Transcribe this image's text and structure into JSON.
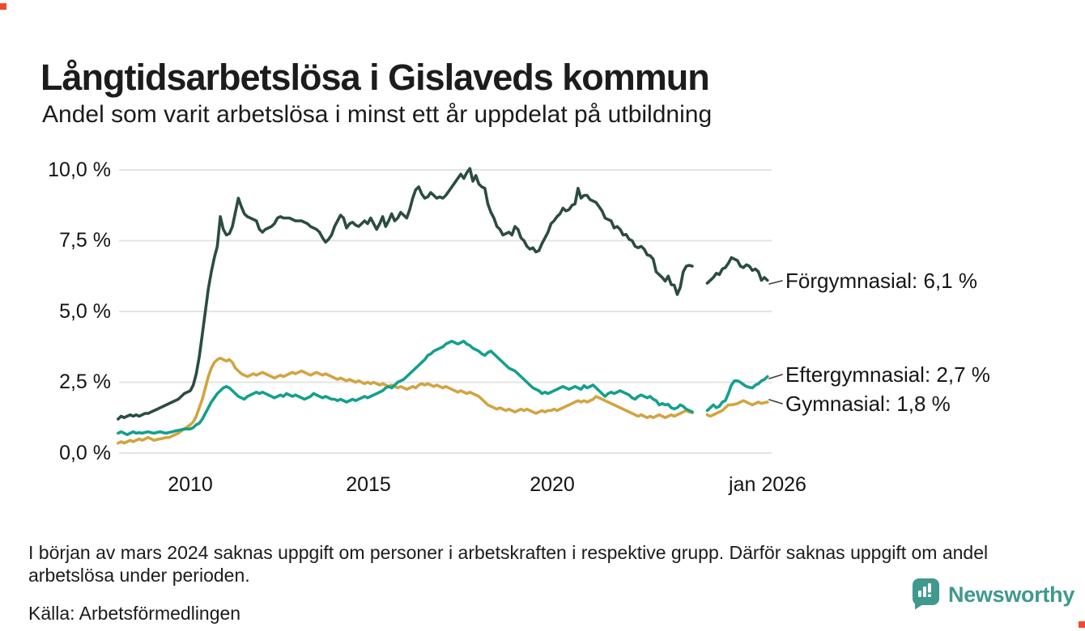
{
  "header": {
    "title": "Långtidsarbetslösa i Gislaveds kommun",
    "subtitle": "Andel som varit arbetslösa i minst ett år uppdelat på utbildning"
  },
  "chart_data": {
    "type": "line",
    "title": "Långtidsarbetslösa i Gislaveds kommun",
    "subtitle": "Andel som varit arbetslösa i minst ett år uppdelat på utbildning",
    "unit": "%",
    "grid": "horizontal only",
    "legend_position": "end-of-line labels at right",
    "x_axis": {
      "start": "2008-01",
      "end": "2026-01",
      "freq": "monthly",
      "ticks": [
        {
          "label": "2010",
          "year": 2010
        },
        {
          "label": "2015",
          "year": 2015
        },
        {
          "label": "2020",
          "year": 2020
        },
        {
          "label": "jan 2026",
          "year": 2026
        }
      ]
    },
    "y_axis": {
      "min": 0,
      "max": 10,
      "ticks": [
        {
          "label": "10,0 %",
          "value": 10
        },
        {
          "label": "7,5 %",
          "value": 7.5
        },
        {
          "label": "5,0 %",
          "value": 5
        },
        {
          "label": "2,5 %",
          "value": 2.5
        },
        {
          "label": "0,0 %",
          "value": 0
        }
      ]
    },
    "data_gap": {
      "months": [
        "2024-01",
        "2024-02",
        "2024-03",
        "2024-04"
      ],
      "reason": "uppgift saknas (se fotnot)"
    },
    "series": [
      {
        "name": "Förgymnasial",
        "color": "#2B4C42",
        "end_label": "Förgymnasial: 6,1 %",
        "latest_value": 6.1,
        "values": [
          1.2,
          1.3,
          1.25,
          1.3,
          1.35,
          1.3,
          1.35,
          1.3,
          1.35,
          1.4,
          1.4,
          1.45,
          1.5,
          1.55,
          1.6,
          1.65,
          1.7,
          1.75,
          1.8,
          1.85,
          1.9,
          2.0,
          2.1,
          2.15,
          2.2,
          2.4,
          2.8,
          3.4,
          4.2,
          5.0,
          5.8,
          6.4,
          6.9,
          7.3,
          8.35,
          7.9,
          7.7,
          7.75,
          8.0,
          8.5,
          9.0,
          8.7,
          8.45,
          8.35,
          8.3,
          8.25,
          8.2,
          7.9,
          7.8,
          7.9,
          7.95,
          8.0,
          8.1,
          8.3,
          8.35,
          8.3,
          8.3,
          8.3,
          8.25,
          8.2,
          8.2,
          8.2,
          8.15,
          8.1,
          8.0,
          7.95,
          7.9,
          7.8,
          7.6,
          7.45,
          7.55,
          7.7,
          8.0,
          8.2,
          8.4,
          8.3,
          7.95,
          8.1,
          8.15,
          8.05,
          8.0,
          8.1,
          8.2,
          8.1,
          8.3,
          8.1,
          7.9,
          8.1,
          8.35,
          8.0,
          8.2,
          8.45,
          8.2,
          8.3,
          8.5,
          8.4,
          8.3,
          8.6,
          9.0,
          9.3,
          9.4,
          9.15,
          9.0,
          9.05,
          9.2,
          9.1,
          9.0,
          9.05,
          9.0,
          9.1,
          9.25,
          9.4,
          9.55,
          9.7,
          9.85,
          9.7,
          9.9,
          10.05,
          9.6,
          9.8,
          9.5,
          9.4,
          9.35,
          8.8,
          8.5,
          8.3,
          8.0,
          7.9,
          7.7,
          7.75,
          7.8,
          7.7,
          8.0,
          7.9,
          7.6,
          7.5,
          7.3,
          7.2,
          7.25,
          7.1,
          7.15,
          7.4,
          7.6,
          7.8,
          8.1,
          8.2,
          8.35,
          8.45,
          8.65,
          8.55,
          8.6,
          8.75,
          8.8,
          9.35,
          9.0,
          9.1,
          9.1,
          8.95,
          8.9,
          8.85,
          8.7,
          8.55,
          8.3,
          8.25,
          8.2,
          7.95,
          8.0,
          7.9,
          7.7,
          7.72,
          7.55,
          7.5,
          7.3,
          7.25,
          7.3,
          7.2,
          7.0,
          6.97,
          6.85,
          6.4,
          6.3,
          6.2,
          6.07,
          6.25,
          5.95,
          5.93,
          5.6,
          5.85,
          6.4,
          6.6,
          6.63,
          6.6,
          null,
          null,
          null,
          null,
          6.0,
          6.1,
          6.2,
          6.35,
          6.3,
          6.5,
          6.55,
          6.7,
          6.9,
          6.85,
          6.8,
          6.6,
          6.55,
          6.65,
          6.6,
          6.45,
          6.5,
          6.4,
          6.1,
          6.2,
          6.1
        ]
      },
      {
        "name": "Eftergymnasial",
        "color": "#13A08C",
        "end_label": "Eftergymnasial: 2,7 %",
        "latest_value": 2.7,
        "values": [
          0.7,
          0.75,
          0.7,
          0.65,
          0.7,
          0.75,
          0.7,
          0.72,
          0.7,
          0.73,
          0.75,
          0.72,
          0.7,
          0.73,
          0.75,
          0.72,
          0.7,
          0.73,
          0.75,
          0.78,
          0.8,
          0.82,
          0.85,
          0.85,
          0.85,
          0.9,
          1.0,
          1.05,
          1.2,
          1.4,
          1.6,
          1.8,
          1.95,
          2.1,
          2.2,
          2.3,
          2.35,
          2.3,
          2.2,
          2.1,
          2.0,
          1.95,
          1.9,
          2.0,
          2.05,
          2.1,
          2.15,
          2.1,
          2.15,
          2.1,
          2.05,
          2.0,
          1.95,
          2.0,
          2.05,
          2.0,
          2.1,
          2.05,
          2.0,
          2.05,
          2.0,
          1.95,
          1.9,
          1.95,
          2.0,
          2.1,
          2.05,
          2.0,
          1.95,
          2.0,
          1.95,
          1.9,
          1.9,
          1.85,
          1.9,
          1.85,
          1.8,
          1.85,
          1.9,
          1.85,
          1.9,
          1.95,
          2.0,
          1.95,
          2.0,
          2.05,
          2.1,
          2.15,
          2.2,
          2.3,
          2.35,
          2.3,
          2.4,
          2.5,
          2.55,
          2.6,
          2.7,
          2.8,
          2.9,
          3.0,
          3.1,
          3.2,
          3.3,
          3.45,
          3.5,
          3.6,
          3.65,
          3.7,
          3.75,
          3.85,
          3.9,
          3.95,
          3.9,
          3.85,
          3.9,
          3.95,
          3.85,
          3.8,
          3.7,
          3.65,
          3.6,
          3.5,
          3.45,
          3.55,
          3.6,
          3.5,
          3.4,
          3.3,
          3.2,
          3.1,
          3.0,
          2.95,
          2.9,
          2.8,
          2.7,
          2.6,
          2.5,
          2.4,
          2.3,
          2.25,
          2.2,
          2.1,
          2.15,
          2.1,
          2.15,
          2.2,
          2.25,
          2.3,
          2.35,
          2.3,
          2.25,
          2.3,
          2.35,
          2.3,
          2.25,
          2.38,
          2.3,
          2.35,
          2.4,
          2.3,
          2.2,
          2.1,
          2.0,
          2.1,
          2.15,
          2.1,
          2.15,
          2.2,
          2.15,
          2.1,
          2.05,
          1.95,
          1.9,
          2.0,
          2.05,
          2.0,
          1.95,
          2.0,
          1.9,
          1.85,
          1.7,
          1.75,
          1.7,
          1.72,
          1.6,
          1.56,
          1.6,
          1.7,
          1.65,
          1.55,
          1.5,
          1.45,
          null,
          null,
          null,
          null,
          1.5,
          1.6,
          1.7,
          1.6,
          1.65,
          1.8,
          1.85,
          2.1,
          2.4,
          2.55,
          2.55,
          2.5,
          2.42,
          2.35,
          2.32,
          2.3,
          2.4,
          2.45,
          2.55,
          2.6,
          2.7
        ]
      },
      {
        "name": "Gymnasial",
        "color": "#D2A440",
        "end_label": "Gymnasial: 1,8 %",
        "latest_value": 1.8,
        "values": [
          0.35,
          0.4,
          0.35,
          0.4,
          0.45,
          0.4,
          0.45,
          0.5,
          0.45,
          0.5,
          0.55,
          0.5,
          0.45,
          0.48,
          0.5,
          0.52,
          0.55,
          0.55,
          0.6,
          0.65,
          0.7,
          0.78,
          0.85,
          0.92,
          1.0,
          1.1,
          1.3,
          1.6,
          1.9,
          2.3,
          2.7,
          3.0,
          3.2,
          3.3,
          3.35,
          3.3,
          3.25,
          3.3,
          3.2,
          3.0,
          2.9,
          2.8,
          2.75,
          2.7,
          2.75,
          2.8,
          2.75,
          2.8,
          2.85,
          2.8,
          2.75,
          2.7,
          2.65,
          2.7,
          2.75,
          2.7,
          2.75,
          2.8,
          2.85,
          2.8,
          2.85,
          2.9,
          2.85,
          2.8,
          2.75,
          2.8,
          2.85,
          2.8,
          2.75,
          2.8,
          2.75,
          2.7,
          2.65,
          2.6,
          2.65,
          2.6,
          2.55,
          2.6,
          2.55,
          2.5,
          2.55,
          2.5,
          2.45,
          2.5,
          2.45,
          2.5,
          2.45,
          2.4,
          2.45,
          2.4,
          2.35,
          2.4,
          2.35,
          2.3,
          2.35,
          2.3,
          2.25,
          2.3,
          2.35,
          2.3,
          2.4,
          2.45,
          2.4,
          2.45,
          2.4,
          2.35,
          2.4,
          2.35,
          2.3,
          2.35,
          2.3,
          2.25,
          2.2,
          2.15,
          2.2,
          2.15,
          2.1,
          2.15,
          2.1,
          2.05,
          2.0,
          1.9,
          1.8,
          1.7,
          1.65,
          1.6,
          1.55,
          1.6,
          1.55,
          1.5,
          1.55,
          1.5,
          1.45,
          1.5,
          1.55,
          1.5,
          1.55,
          1.5,
          1.45,
          1.4,
          1.45,
          1.5,
          1.45,
          1.5,
          1.5,
          1.55,
          1.5,
          1.55,
          1.6,
          1.65,
          1.7,
          1.75,
          1.8,
          1.85,
          1.8,
          1.85,
          1.8,
          1.85,
          1.9,
          2.0,
          1.95,
          1.9,
          1.85,
          1.8,
          1.75,
          1.7,
          1.65,
          1.6,
          1.55,
          1.5,
          1.45,
          1.4,
          1.35,
          1.3,
          1.35,
          1.3,
          1.25,
          1.3,
          1.25,
          1.3,
          1.35,
          1.3,
          1.25,
          1.3,
          1.35,
          1.3,
          1.35,
          1.4,
          1.45,
          1.5,
          1.45,
          1.42,
          null,
          null,
          null,
          null,
          1.35,
          1.3,
          1.35,
          1.4,
          1.45,
          1.5,
          1.6,
          1.7,
          1.7,
          1.72,
          1.75,
          1.8,
          1.85,
          1.8,
          1.75,
          1.7,
          1.75,
          1.8,
          1.75,
          1.78,
          1.8
        ]
      }
    ]
  },
  "footnote": {
    "text": "I början av mars 2024 saknas uppgift om personer i arbetskraften i respektive grupp. Därför saknas uppgift om andel arbetslösa under perioden."
  },
  "source": {
    "text": "Källa: Arbetsförmedlingen"
  },
  "logo": {
    "text": "Newsworthy",
    "color": "#3F998D"
  }
}
